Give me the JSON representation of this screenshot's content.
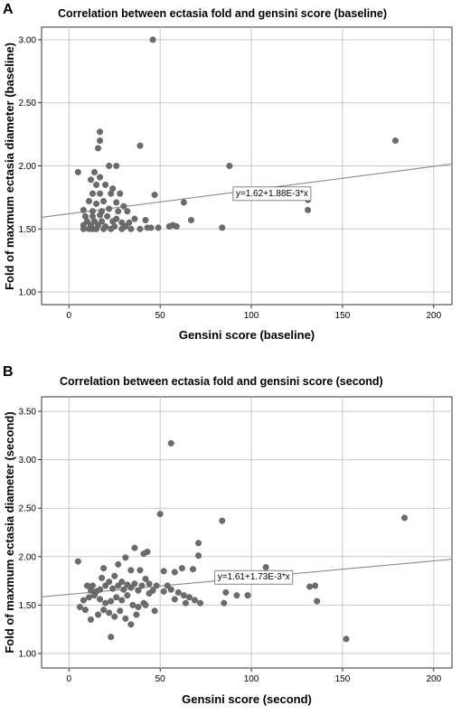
{
  "chart_data": [
    {
      "panel": "A",
      "type": "scatter",
      "title": "Correlation between ectasia fold and gensini score (baseline)",
      "xlabel": "Gensini score (baseline)",
      "ylabel": "Fold of maxmum ectasia diameter (baseline)",
      "xlim": [
        -15,
        210
      ],
      "ylim": [
        0.9,
        3.1
      ],
      "xticks": [
        0,
        50,
        100,
        150,
        200
      ],
      "yticks": [
        1.0,
        1.5,
        2.0,
        2.5,
        3.0
      ],
      "ytick_labels": [
        "1.00",
        "1.50",
        "2.00",
        "2.50",
        "3.00"
      ],
      "grid": true,
      "fit": {
        "intercept": 1.62,
        "slope": 0.00188,
        "label": "y=1.62+1.88E-3*x",
        "label_at": [
          90,
          1.79
        ]
      },
      "points": [
        [
          46,
          3.0
        ],
        [
          17,
          2.27
        ],
        [
          17,
          2.2
        ],
        [
          39,
          2.16
        ],
        [
          16,
          2.14
        ],
        [
          47,
          1.77
        ],
        [
          88,
          2.0
        ],
        [
          179,
          2.2
        ],
        [
          5,
          1.95
        ],
        [
          14,
          1.95
        ],
        [
          17,
          1.91
        ],
        [
          12,
          1.89
        ],
        [
          22,
          2.0
        ],
        [
          26,
          2.0
        ],
        [
          15,
          1.85
        ],
        [
          20,
          1.85
        ],
        [
          24,
          1.82
        ],
        [
          13,
          1.78
        ],
        [
          17,
          1.78
        ],
        [
          23,
          1.78
        ],
        [
          28,
          1.78
        ],
        [
          11,
          1.72
        ],
        [
          15,
          1.7
        ],
        [
          19,
          1.72
        ],
        [
          26,
          1.71
        ],
        [
          30,
          1.68
        ],
        [
          63,
          1.71
        ],
        [
          131,
          1.73
        ],
        [
          131,
          1.65
        ],
        [
          8,
          1.65
        ],
        [
          13,
          1.64
        ],
        [
          18,
          1.64
        ],
        [
          22,
          1.66
        ],
        [
          27,
          1.64
        ],
        [
          32,
          1.64
        ],
        [
          9,
          1.6
        ],
        [
          13,
          1.6
        ],
        [
          17,
          1.61
        ],
        [
          21,
          1.6
        ],
        [
          26,
          1.58
        ],
        [
          36,
          1.58
        ],
        [
          42,
          1.57
        ],
        [
          57,
          1.53
        ],
        [
          67,
          1.57
        ],
        [
          10,
          1.56
        ],
        [
          14,
          1.56
        ],
        [
          18,
          1.56
        ],
        [
          24,
          1.56
        ],
        [
          29,
          1.55
        ],
        [
          33,
          1.55
        ],
        [
          8,
          1.53
        ],
        [
          12,
          1.53
        ],
        [
          16,
          1.53
        ],
        [
          20,
          1.52
        ],
        [
          25,
          1.52
        ],
        [
          31,
          1.52
        ],
        [
          45,
          1.51
        ],
        [
          55,
          1.52
        ],
        [
          59,
          1.52
        ],
        [
          84,
          1.51
        ],
        [
          8,
          1.5
        ],
        [
          11,
          1.5
        ],
        [
          13,
          1.5
        ],
        [
          15,
          1.5
        ],
        [
          19,
          1.5
        ],
        [
          23,
          1.5
        ],
        [
          29,
          1.5
        ],
        [
          34,
          1.5
        ],
        [
          39,
          1.5
        ],
        [
          43,
          1.51
        ],
        [
          49,
          1.51
        ]
      ]
    },
    {
      "panel": "B",
      "type": "scatter",
      "title": "Correlation between ectasia fold and gensini score (second)",
      "xlabel": "Gensini score (second)",
      "ylabel": "Fold of maxmum ectasia diameter (second)",
      "xlim": [
        -15,
        210
      ],
      "ylim": [
        0.85,
        3.65
      ],
      "xticks": [
        0,
        50,
        100,
        150,
        200
      ],
      "yticks": [
        1.0,
        1.5,
        2.0,
        2.5,
        3.0,
        3.5
      ],
      "ytick_labels": [
        "1.00",
        "1.50",
        "2.00",
        "2.50",
        "3.00",
        "3.50"
      ],
      "grid": true,
      "fit": {
        "intercept": 1.61,
        "slope": 0.00173,
        "label": "y=1.61+1.73E-3*x",
        "label_at": [
          80,
          1.8
        ]
      },
      "points": [
        [
          56,
          3.17
        ],
        [
          50,
          2.44
        ],
        [
          84,
          2.37
        ],
        [
          184,
          2.4
        ],
        [
          152,
          1.15
        ],
        [
          23,
          1.17
        ],
        [
          5,
          1.95
        ],
        [
          36,
          2.09
        ],
        [
          43,
          2.05
        ],
        [
          41,
          2.03
        ],
        [
          31,
          1.99
        ],
        [
          71,
          2.14
        ],
        [
          71,
          2.01
        ],
        [
          108,
          1.89
        ],
        [
          135,
          1.7
        ],
        [
          132,
          1.69
        ],
        [
          136,
          1.54
        ],
        [
          85,
          1.52
        ],
        [
          86,
          1.63
        ],
        [
          92,
          1.6
        ],
        [
          98,
          1.6
        ],
        [
          19,
          1.88
        ],
        [
          27,
          1.92
        ],
        [
          34,
          1.86
        ],
        [
          39,
          1.86
        ],
        [
          62,
          1.88
        ],
        [
          68,
          1.87
        ],
        [
          10,
          1.7
        ],
        [
          12,
          1.65
        ],
        [
          13,
          1.7
        ],
        [
          15,
          1.64
        ],
        [
          17,
          1.66
        ],
        [
          18,
          1.78
        ],
        [
          20,
          1.7
        ],
        [
          22,
          1.74
        ],
        [
          24,
          1.67
        ],
        [
          25,
          1.8
        ],
        [
          27,
          1.7
        ],
        [
          29,
          1.74
        ],
        [
          30,
          1.66
        ],
        [
          32,
          1.71
        ],
        [
          34,
          1.68
        ],
        [
          36,
          1.72
        ],
        [
          38,
          1.65
        ],
        [
          40,
          1.7
        ],
        [
          42,
          1.77
        ],
        [
          44,
          1.72
        ],
        [
          46,
          1.65
        ],
        [
          48,
          1.7
        ],
        [
          52,
          1.64
        ],
        [
          54,
          1.7
        ],
        [
          56,
          1.66
        ],
        [
          60,
          1.63
        ],
        [
          63,
          1.6
        ],
        [
          66,
          1.58
        ],
        [
          69,
          1.55
        ],
        [
          72,
          1.52
        ],
        [
          8,
          1.55
        ],
        [
          11,
          1.58
        ],
        [
          14,
          1.6
        ],
        [
          17,
          1.56
        ],
        [
          20,
          1.52
        ],
        [
          23,
          1.54
        ],
        [
          26,
          1.58
        ],
        [
          29,
          1.55
        ],
        [
          32,
          1.6
        ],
        [
          35,
          1.5
        ],
        [
          38,
          1.48
        ],
        [
          41,
          1.52
        ],
        [
          44,
          1.62
        ],
        [
          47,
          1.44
        ],
        [
          6,
          1.48
        ],
        [
          9,
          1.45
        ],
        [
          12,
          1.35
        ],
        [
          16,
          1.4
        ],
        [
          19,
          1.45
        ],
        [
          22,
          1.42
        ],
        [
          25,
          1.38
        ],
        [
          28,
          1.44
        ],
        [
          31,
          1.36
        ],
        [
          34,
          1.3
        ],
        [
          37,
          1.4
        ],
        [
          42,
          1.5
        ],
        [
          58,
          1.56
        ],
        [
          64,
          1.52
        ],
        [
          52,
          1.85
        ],
        [
          58,
          1.84
        ]
      ]
    }
  ]
}
